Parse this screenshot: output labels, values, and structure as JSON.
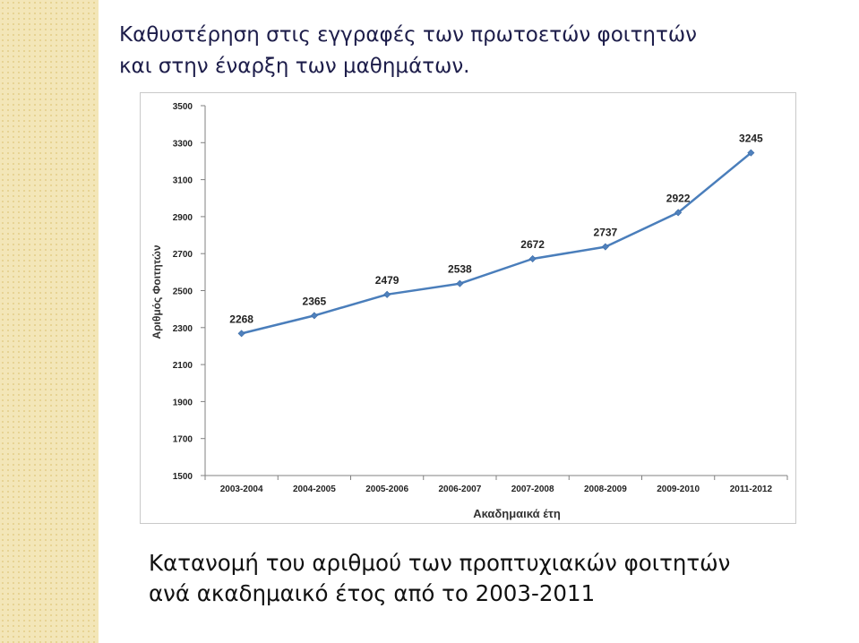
{
  "slide": {
    "title_line1": "Καθυστέρηση στις εγγραφές των πρωτοετών φοιτητών",
    "title_line2": "και στην έναρξη των μαθημάτων.",
    "caption_line1": "Κατανομή του αριθμού των προπτυχιακών φοιτητών",
    "caption_line2": "ανά ακαδημαικό έτος από το 2003-2011"
  },
  "colors": {
    "strip": "#f3e6b8",
    "line": "#4a7ebb",
    "marker": "#4f81bd",
    "axis": "#808080"
  },
  "chart_data": {
    "type": "line",
    "categories": [
      "2003-2004",
      "2004-2005",
      "2005-2006",
      "2006-2007",
      "2007-2008",
      "2008-2009",
      "2009-2010",
      "2011-2012"
    ],
    "series": [
      {
        "values": [
          2268,
          2365,
          2479,
          2538,
          2672,
          2737,
          2922,
          3245
        ]
      }
    ],
    "xlabel": "Ακαδημαικά έτη",
    "ylabel": "Αριθμός Φοιτητών",
    "ylim": [
      1500,
      3500
    ],
    "yticks": [
      1500,
      1700,
      1900,
      2100,
      2300,
      2500,
      2700,
      2900,
      3100,
      3300,
      3500
    ],
    "data_labels": true,
    "grid": false,
    "legend": "none"
  }
}
